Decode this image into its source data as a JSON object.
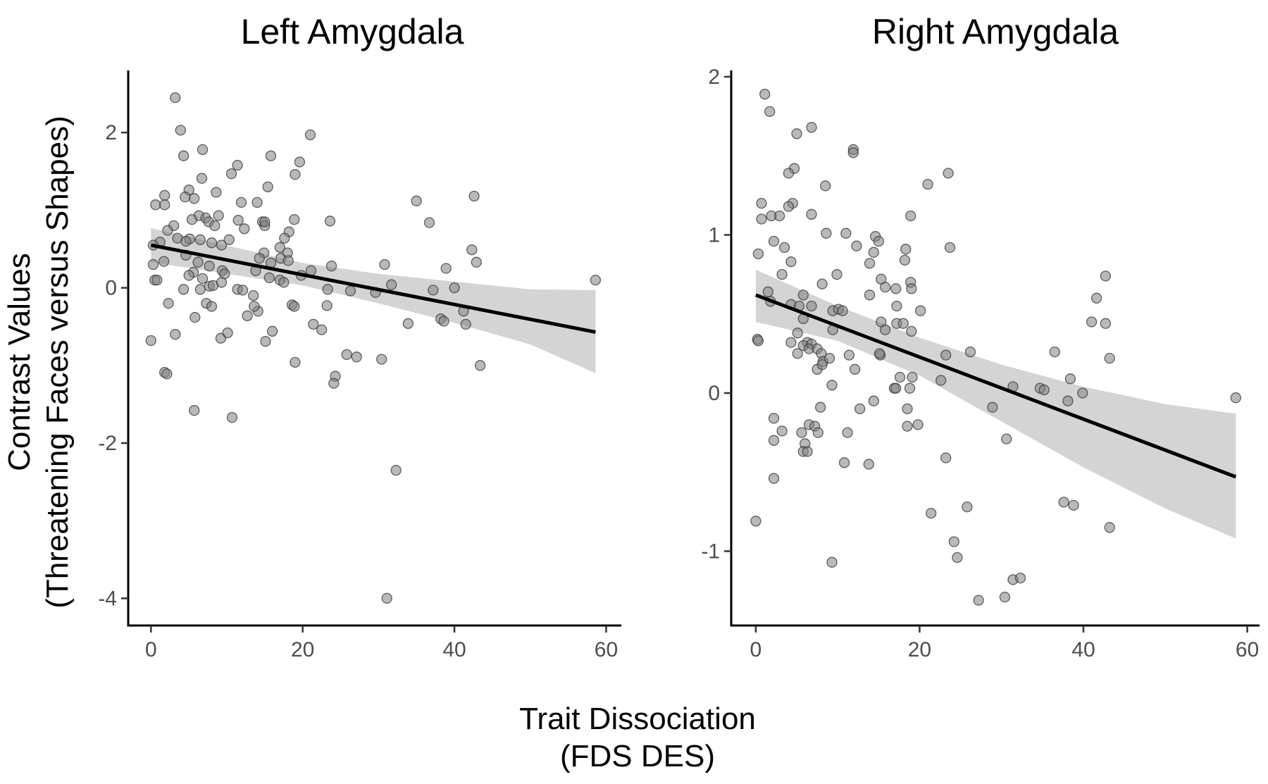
{
  "figure": {
    "xlabel_line1": "Trait Dissociation",
    "xlabel_line2": "(FDS DES)",
    "ylabel_line1": "Contrast Values",
    "ylabel_line2": "(Threatening Faces versus Shapes)"
  },
  "chart_data": [
    {
      "type": "scatter",
      "title": "Left Amygdala",
      "xlabel": "Trait Dissociation (FDS DES)",
      "ylabel": "Contrast Values (Threatening Faces versus Shapes)",
      "xlim": [
        -3,
        62
      ],
      "ylim": [
        -4.35,
        2.8
      ],
      "xticks": [
        0,
        20,
        40,
        60
      ],
      "yticks": [
        -4,
        -2,
        0,
        2
      ],
      "grid": false,
      "legend": "none",
      "points": [
        [
          3.2,
          2.45
        ],
        [
          3.9,
          2.03
        ],
        [
          6.8,
          1.78
        ],
        [
          21,
          1.97
        ],
        [
          4.3,
          1.7
        ],
        [
          15.8,
          1.7
        ],
        [
          11.4,
          1.58
        ],
        [
          19.6,
          1.62
        ],
        [
          10.6,
          1.47
        ],
        [
          19,
          1.46
        ],
        [
          6.7,
          1.41
        ],
        [
          1.8,
          1.19
        ],
        [
          5,
          1.26
        ],
        [
          8.6,
          1.23
        ],
        [
          4.5,
          1.17
        ],
        [
          5.7,
          1.15
        ],
        [
          0.6,
          1.07
        ],
        [
          1.8,
          1.07
        ],
        [
          11.9,
          1.1
        ],
        [
          14,
          1.1
        ],
        [
          15.4,
          1.3
        ],
        [
          35,
          1.12
        ],
        [
          42.6,
          1.18
        ],
        [
          7.2,
          0.9
        ],
        [
          8.9,
          0.93
        ],
        [
          6.3,
          0.93
        ],
        [
          5.4,
          0.88
        ],
        [
          7.6,
          0.85
        ],
        [
          8.4,
          0.8
        ],
        [
          11.5,
          0.87
        ],
        [
          12.3,
          0.76
        ],
        [
          14.7,
          0.85
        ],
        [
          15,
          0.8
        ],
        [
          15,
          0.85
        ],
        [
          18.2,
          0.72
        ],
        [
          18.9,
          0.88
        ],
        [
          23.6,
          0.86
        ],
        [
          36.7,
          0.84
        ],
        [
          3,
          0.8
        ],
        [
          2.2,
          0.74
        ],
        [
          3.5,
          0.64
        ],
        [
          5.1,
          0.63
        ],
        [
          4.6,
          0.6
        ],
        [
          6.5,
          0.62
        ],
        [
          8,
          0.58
        ],
        [
          9.3,
          0.55
        ],
        [
          1.2,
          0.59
        ],
        [
          0.3,
          0.55
        ],
        [
          17.6,
          0.64
        ],
        [
          17,
          0.52
        ],
        [
          14.9,
          0.45
        ],
        [
          18,
          0.45
        ],
        [
          42.3,
          0.49
        ],
        [
          1.7,
          0.34
        ],
        [
          0.3,
          0.3
        ],
        [
          4.6,
          0.42
        ],
        [
          5.6,
          0.2
        ],
        [
          6.2,
          0.33
        ],
        [
          7.7,
          0.28
        ],
        [
          9.4,
          0.22
        ],
        [
          10.3,
          0.62
        ],
        [
          13.8,
          0.22
        ],
        [
          14.3,
          0.38
        ],
        [
          15.8,
          0.32
        ],
        [
          17.1,
          0.38
        ],
        [
          18.1,
          0.35
        ],
        [
          19.8,
          0.16
        ],
        [
          21.1,
          0.22
        ],
        [
          23.8,
          0.28
        ],
        [
          30.8,
          0.3
        ],
        [
          38.9,
          0.25
        ],
        [
          42.9,
          0.33
        ],
        [
          5,
          0.16
        ],
        [
          6.8,
          0.12
        ],
        [
          9.7,
          0.18
        ],
        [
          0.5,
          0.1
        ],
        [
          0.8,
          0.1
        ],
        [
          7.7,
          0.02
        ],
        [
          8.2,
          0.03
        ],
        [
          15.6,
          0.13
        ],
        [
          17,
          0.1
        ],
        [
          17.5,
          0.07
        ],
        [
          9.3,
          0.07
        ],
        [
          4.3,
          -0.02
        ],
        [
          6.5,
          -0.02
        ],
        [
          11.4,
          -0.02
        ],
        [
          12.1,
          -0.03
        ],
        [
          13.5,
          -0.1
        ],
        [
          23.3,
          -0.02
        ],
        [
          26.3,
          -0.04
        ],
        [
          29.6,
          -0.06
        ],
        [
          31.7,
          0.04
        ],
        [
          37.2,
          -0.03
        ],
        [
          40,
          0.0
        ],
        [
          2.3,
          -0.2
        ],
        [
          7.3,
          -0.2
        ],
        [
          8,
          -0.24
        ],
        [
          12.7,
          -0.36
        ],
        [
          14.1,
          -0.3
        ],
        [
          13.6,
          -0.24
        ],
        [
          18.6,
          -0.22
        ],
        [
          23.2,
          -0.23
        ],
        [
          18.9,
          -0.24
        ],
        [
          5.8,
          -0.38
        ],
        [
          3.2,
          -0.6
        ],
        [
          9.2,
          -0.65
        ],
        [
          10.1,
          -0.58
        ],
        [
          15.1,
          -0.69
        ],
        [
          16,
          -0.56
        ],
        [
          21.4,
          -0.47
        ],
        [
          22.5,
          -0.54
        ],
        [
          33.9,
          -0.46
        ],
        [
          38.2,
          -0.4
        ],
        [
          38.6,
          -0.43
        ],
        [
          41.2,
          -0.3
        ],
        [
          41.5,
          -0.47
        ],
        [
          0,
          -0.68
        ],
        [
          1.8,
          -1.09
        ],
        [
          2.1,
          -1.11
        ],
        [
          10.7,
          -1.67
        ],
        [
          5.7,
          -1.58
        ],
        [
          19,
          -0.96
        ],
        [
          24.3,
          -1.14
        ],
        [
          25.8,
          -0.86
        ],
        [
          27.1,
          -0.89
        ],
        [
          30.4,
          -0.92
        ],
        [
          24.1,
          -1.23
        ],
        [
          43.4,
          -1.0
        ],
        [
          58.6,
          0.1
        ],
        [
          32.3,
          -2.35
        ],
        [
          31.1,
          -4.0
        ]
      ],
      "fit_line": {
        "x": [
          0,
          58.6
        ],
        "y": [
          0.55,
          -0.57
        ]
      },
      "confidence_band": {
        "x": [
          0,
          20,
          30,
          40,
          50,
          58.6
        ],
        "lower": [
          0.33,
          0.03,
          -0.2,
          -0.45,
          -0.73,
          -1.1
        ],
        "upper": [
          0.77,
          0.32,
          0.18,
          0.08,
          -0.02,
          -0.03
        ]
      }
    },
    {
      "type": "scatter",
      "title": "Right Amygdala",
      "xlabel": "Trait Dissociation (FDS DES)",
      "ylabel": "Contrast Values (Threatening Faces versus Shapes)",
      "xlim": [
        -3,
        61.5
      ],
      "ylim": [
        -1.47,
        2.04
      ],
      "xticks": [
        0,
        20,
        40,
        60
      ],
      "yticks": [
        -1,
        0,
        1,
        2
      ],
      "grid": false,
      "legend": "none",
      "points": [
        [
          1.1,
          1.89
        ],
        [
          1.7,
          1.78
        ],
        [
          5,
          1.64
        ],
        [
          6.8,
          1.68
        ],
        [
          11.9,
          1.54
        ],
        [
          11.9,
          1.52
        ],
        [
          4.7,
          1.42
        ],
        [
          4,
          1.39
        ],
        [
          23.5,
          1.39
        ],
        [
          21,
          1.32
        ],
        [
          8.5,
          1.31
        ],
        [
          4.5,
          1.2
        ],
        [
          4,
          1.18
        ],
        [
          0.7,
          1.2
        ],
        [
          1.9,
          1.12
        ],
        [
          2.9,
          1.12
        ],
        [
          0.7,
          1.1
        ],
        [
          6.8,
          1.13
        ],
        [
          18.9,
          1.12
        ],
        [
          2.2,
          0.96
        ],
        [
          3.5,
          0.92
        ],
        [
          11,
          1.01
        ],
        [
          14.6,
          0.99
        ],
        [
          15,
          0.96
        ],
        [
          8.6,
          1.01
        ],
        [
          12.3,
          0.93
        ],
        [
          0.3,
          0.88
        ],
        [
          4.3,
          0.83
        ],
        [
          14.4,
          0.89
        ],
        [
          13.9,
          0.82
        ],
        [
          18.3,
          0.91
        ],
        [
          18.2,
          0.84
        ],
        [
          23.7,
          0.92
        ],
        [
          3.2,
          0.75
        ],
        [
          9.9,
          0.75
        ],
        [
          15.3,
          0.72
        ],
        [
          18.9,
          0.7
        ],
        [
          19,
          0.66
        ],
        [
          15.8,
          0.67
        ],
        [
          17.1,
          0.66
        ],
        [
          42.7,
          0.74
        ],
        [
          8.1,
          0.69
        ],
        [
          1.5,
          0.64
        ],
        [
          5.8,
          0.62
        ],
        [
          1.8,
          0.58
        ],
        [
          13.9,
          0.62
        ],
        [
          17.2,
          0.55
        ],
        [
          20.1,
          0.52
        ],
        [
          41.6,
          0.6
        ],
        [
          4.3,
          0.56
        ],
        [
          5.3,
          0.55
        ],
        [
          6.8,
          0.55
        ],
        [
          9.4,
          0.52
        ],
        [
          10.1,
          0.53
        ],
        [
          10.6,
          0.52
        ],
        [
          15.3,
          0.45
        ],
        [
          17.2,
          0.44
        ],
        [
          18,
          0.44
        ],
        [
          41,
          0.45
        ],
        [
          42.7,
          0.44
        ],
        [
          5.8,
          0.47
        ],
        [
          9.4,
          0.4
        ],
        [
          15.8,
          0.4
        ],
        [
          19,
          0.39
        ],
        [
          5.1,
          0.38
        ],
        [
          0.2,
          0.34
        ],
        [
          0.3,
          0.33
        ],
        [
          4.3,
          0.32
        ],
        [
          6.3,
          0.32
        ],
        [
          5.8,
          0.3
        ],
        [
          6.8,
          0.31
        ],
        [
          6.5,
          0.28
        ],
        [
          7.5,
          0.28
        ],
        [
          8,
          0.25
        ],
        [
          11.4,
          0.24
        ],
        [
          15.2,
          0.24
        ],
        [
          15.1,
          0.25
        ],
        [
          23.2,
          0.24
        ],
        [
          26.2,
          0.26
        ],
        [
          36.5,
          0.26
        ],
        [
          43.2,
          0.22
        ],
        [
          5.1,
          0.25
        ],
        [
          8.2,
          0.2
        ],
        [
          9,
          0.22
        ],
        [
          7.5,
          0.15
        ],
        [
          12.1,
          0.15
        ],
        [
          8.1,
          0.18
        ],
        [
          17.6,
          0.1
        ],
        [
          19.1,
          0.1
        ],
        [
          16.9,
          0.03
        ],
        [
          18.8,
          0.03
        ],
        [
          17.1,
          0.03
        ],
        [
          22.6,
          0.08
        ],
        [
          31.4,
          0.04
        ],
        [
          34.7,
          0.03
        ],
        [
          35.2,
          0.02
        ],
        [
          38.4,
          0.09
        ],
        [
          39.9,
          0.0
        ],
        [
          9.3,
          0.05
        ],
        [
          14.4,
          -0.05
        ],
        [
          28.9,
          -0.09
        ],
        [
          38.1,
          -0.05
        ],
        [
          58.6,
          -0.03
        ],
        [
          7.9,
          -0.09
        ],
        [
          12.7,
          -0.1
        ],
        [
          18.5,
          -0.1
        ],
        [
          2.2,
          -0.16
        ],
        [
          3.2,
          -0.24
        ],
        [
          6.5,
          -0.2
        ],
        [
          7.2,
          -0.21
        ],
        [
          5.6,
          -0.25
        ],
        [
          7.6,
          -0.25
        ],
        [
          11.2,
          -0.25
        ],
        [
          18.5,
          -0.21
        ],
        [
          19.8,
          -0.2
        ],
        [
          2.2,
          -0.3
        ],
        [
          6,
          -0.32
        ],
        [
          5.8,
          -0.37
        ],
        [
          6.3,
          -0.37
        ],
        [
          10.8,
          -0.44
        ],
        [
          13.8,
          -0.45
        ],
        [
          23.2,
          -0.41
        ],
        [
          30.6,
          -0.29
        ],
        [
          2.2,
          -0.54
        ],
        [
          0,
          -0.81
        ],
        [
          21.4,
          -0.76
        ],
        [
          25.8,
          -0.72
        ],
        [
          37.6,
          -0.69
        ],
        [
          38.8,
          -0.71
        ],
        [
          43.2,
          -0.85
        ],
        [
          24.2,
          -0.94
        ],
        [
          24.6,
          -1.04
        ],
        [
          9.3,
          -1.07
        ],
        [
          31.4,
          -1.18
        ],
        [
          32.3,
          -1.17
        ],
        [
          27.2,
          -1.31
        ],
        [
          30.4,
          -1.29
        ]
      ],
      "fit_line": {
        "x": [
          0,
          58.6
        ],
        "y": [
          0.62,
          -0.53
        ]
      },
      "confidence_band": {
        "x": [
          0,
          10,
          20,
          30,
          40,
          50,
          58.6
        ],
        "lower": [
          0.45,
          0.33,
          0.11,
          -0.18,
          -0.47,
          -0.73,
          -0.92
        ],
        "upper": [
          0.78,
          0.55,
          0.35,
          0.18,
          0.04,
          -0.07,
          -0.13
        ]
      }
    }
  ]
}
